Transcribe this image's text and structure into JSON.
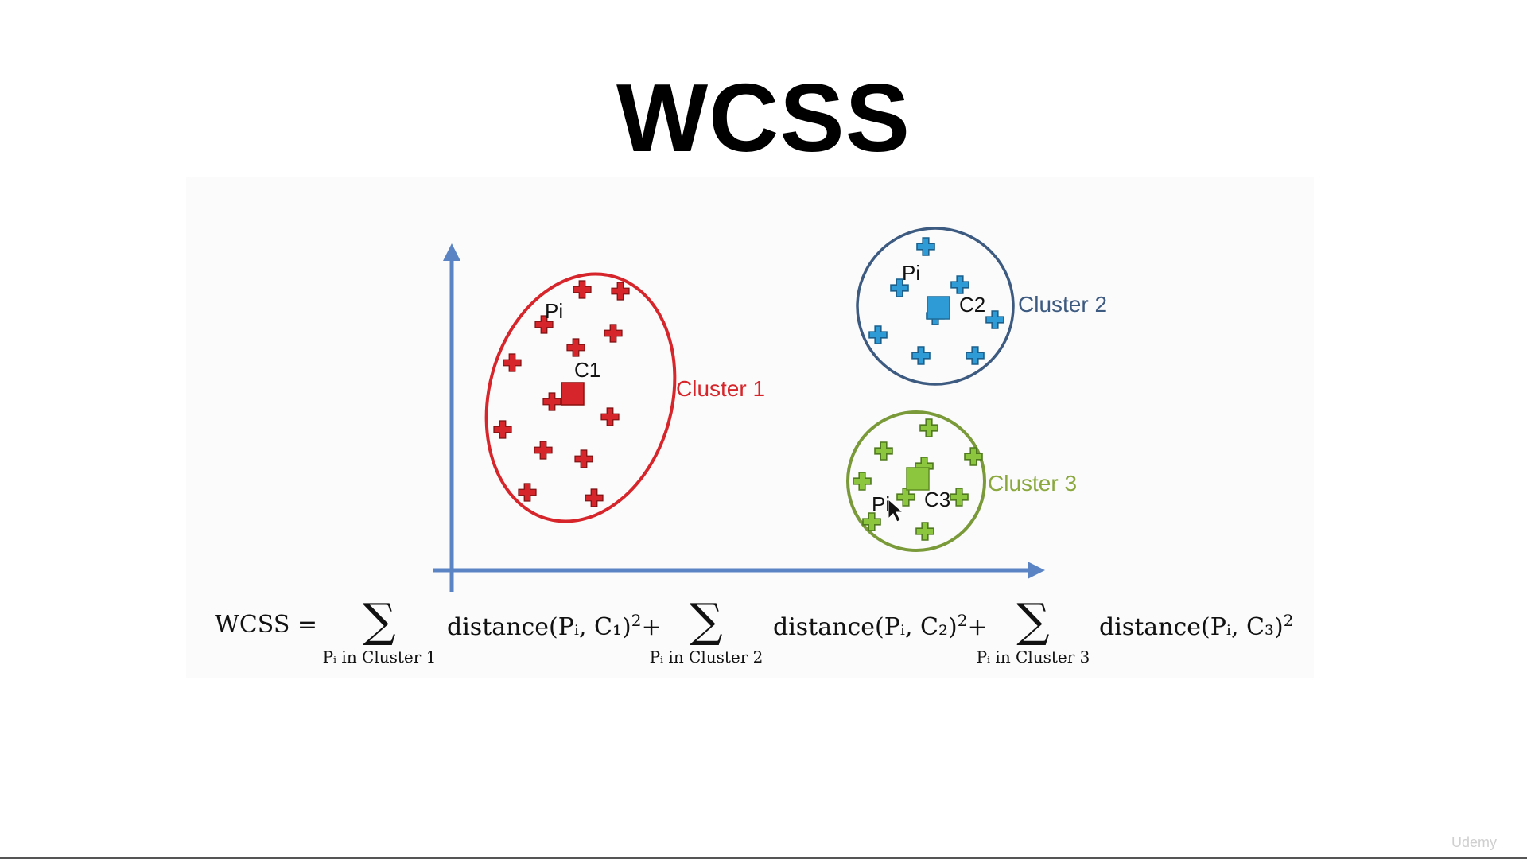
{
  "title": "WCSS",
  "clusters": [
    {
      "name": "Cluster 1",
      "centroid_label": "C1",
      "point_label": "Pi",
      "color": "#d7262b"
    },
    {
      "name": "Cluster 2",
      "centroid_label": "C2",
      "point_label": "Pi",
      "color": "#2f9bd6",
      "border_color": "#3d5a80",
      "label_color": "#3d5a80"
    },
    {
      "name": "Cluster 3",
      "centroid_label": "C3",
      "point_label": "Pi",
      "color": "#8cc63f",
      "border_color": "#7a9a3a",
      "label_color": "#8aa83e"
    }
  ],
  "axis_color": "#5b84c4",
  "formula": {
    "lhs": "WCSS =",
    "sigma": "∑",
    "terms": [
      {
        "sub": "Pᵢ in Cluster 1",
        "expr": "distance(Pᵢ, C₁)",
        "op": "+"
      },
      {
        "sub": "Pᵢ in Cluster 2",
        "expr": "distance(Pᵢ, C₂)",
        "op": "+"
      },
      {
        "sub": "Pᵢ in Cluster 3",
        "expr": "distance(Pᵢ, C₃)",
        "op": ""
      }
    ],
    "exponent": "2"
  },
  "watermark": "Udemy"
}
